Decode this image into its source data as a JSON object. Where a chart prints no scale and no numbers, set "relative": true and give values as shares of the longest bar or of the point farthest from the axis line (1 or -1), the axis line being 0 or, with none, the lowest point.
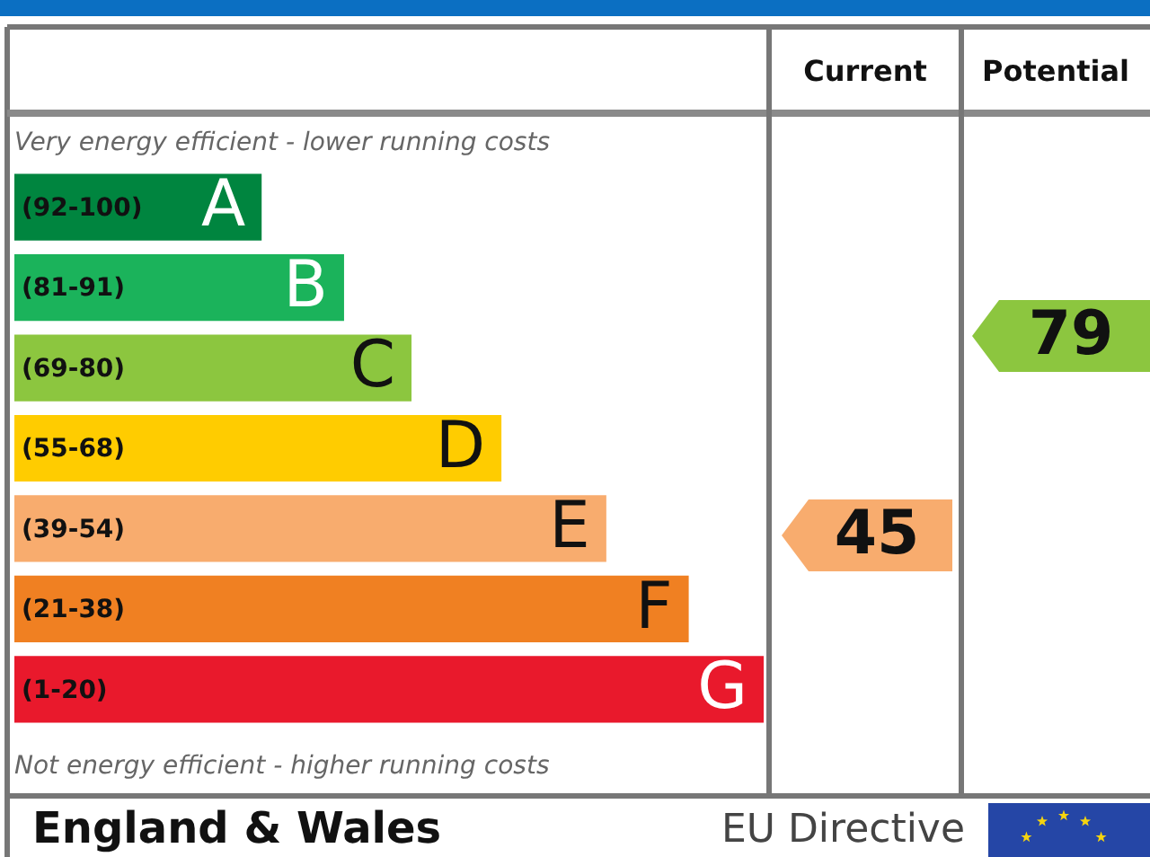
{
  "chart_data": {
    "type": "bar",
    "orientation": "horizontal",
    "relative": true,
    "categories": [
      "A",
      "B",
      "C",
      "D",
      "E",
      "F",
      "G"
    ],
    "values": [
      0.33,
      0.44,
      0.53,
      0.65,
      0.79,
      0.9,
      1
    ],
    "colors": [
      "#00853f",
      "#1bb35b",
      "#8cc63f",
      "#ffcc00",
      "#f8ac6e",
      "#f08022",
      "#e9192c"
    ],
    "annotations": [
      "Current",
      "Potential",
      "45",
      "79",
      "Very energy efficient - lower running costs",
      "Not energy efficient - higher running costs",
      "England & Wales",
      "EU Directive",
      "(92-100)",
      "(81-91)",
      "(69-80)",
      "(55-68)",
      "(39-54)",
      "(21-38)",
      "(1-20)"
    ]
  }
}
